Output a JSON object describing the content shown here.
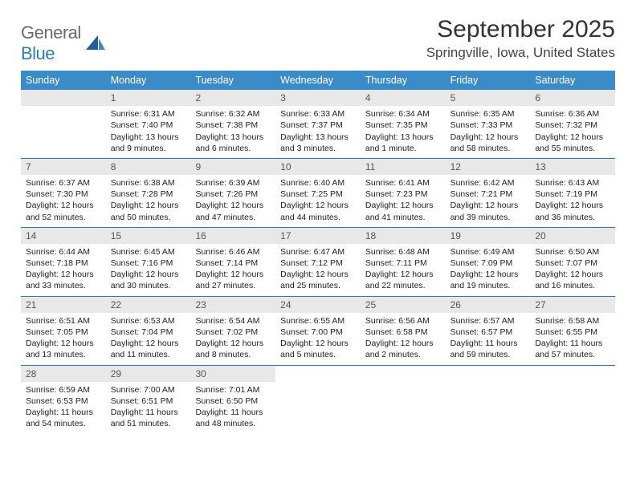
{
  "logo": {
    "word1": "General",
    "word2": "Blue"
  },
  "title": "September 2025",
  "location": "Springville, Iowa, United States",
  "colors": {
    "header_bg": "#3b8bc9",
    "header_text": "#ffffff",
    "daynum_bg": "#e8e8e8",
    "week_border": "#2c7bbf",
    "logo_gray": "#6a6a6a",
    "logo_blue": "#2c7bbf"
  },
  "weekdays": [
    "Sunday",
    "Monday",
    "Tuesday",
    "Wednesday",
    "Thursday",
    "Friday",
    "Saturday"
  ],
  "weeks": [
    [
      null,
      {
        "n": "1",
        "sr": "Sunrise: 6:31 AM",
        "ss": "Sunset: 7:40 PM",
        "dl": "Daylight: 13 hours and 9 minutes."
      },
      {
        "n": "2",
        "sr": "Sunrise: 6:32 AM",
        "ss": "Sunset: 7:38 PM",
        "dl": "Daylight: 13 hours and 6 minutes."
      },
      {
        "n": "3",
        "sr": "Sunrise: 6:33 AM",
        "ss": "Sunset: 7:37 PM",
        "dl": "Daylight: 13 hours and 3 minutes."
      },
      {
        "n": "4",
        "sr": "Sunrise: 6:34 AM",
        "ss": "Sunset: 7:35 PM",
        "dl": "Daylight: 13 hours and 1 minute."
      },
      {
        "n": "5",
        "sr": "Sunrise: 6:35 AM",
        "ss": "Sunset: 7:33 PM",
        "dl": "Daylight: 12 hours and 58 minutes."
      },
      {
        "n": "6",
        "sr": "Sunrise: 6:36 AM",
        "ss": "Sunset: 7:32 PM",
        "dl": "Daylight: 12 hours and 55 minutes."
      }
    ],
    [
      {
        "n": "7",
        "sr": "Sunrise: 6:37 AM",
        "ss": "Sunset: 7:30 PM",
        "dl": "Daylight: 12 hours and 52 minutes."
      },
      {
        "n": "8",
        "sr": "Sunrise: 6:38 AM",
        "ss": "Sunset: 7:28 PM",
        "dl": "Daylight: 12 hours and 50 minutes."
      },
      {
        "n": "9",
        "sr": "Sunrise: 6:39 AM",
        "ss": "Sunset: 7:26 PM",
        "dl": "Daylight: 12 hours and 47 minutes."
      },
      {
        "n": "10",
        "sr": "Sunrise: 6:40 AM",
        "ss": "Sunset: 7:25 PM",
        "dl": "Daylight: 12 hours and 44 minutes."
      },
      {
        "n": "11",
        "sr": "Sunrise: 6:41 AM",
        "ss": "Sunset: 7:23 PM",
        "dl": "Daylight: 12 hours and 41 minutes."
      },
      {
        "n": "12",
        "sr": "Sunrise: 6:42 AM",
        "ss": "Sunset: 7:21 PM",
        "dl": "Daylight: 12 hours and 39 minutes."
      },
      {
        "n": "13",
        "sr": "Sunrise: 6:43 AM",
        "ss": "Sunset: 7:19 PM",
        "dl": "Daylight: 12 hours and 36 minutes."
      }
    ],
    [
      {
        "n": "14",
        "sr": "Sunrise: 6:44 AM",
        "ss": "Sunset: 7:18 PM",
        "dl": "Daylight: 12 hours and 33 minutes."
      },
      {
        "n": "15",
        "sr": "Sunrise: 6:45 AM",
        "ss": "Sunset: 7:16 PM",
        "dl": "Daylight: 12 hours and 30 minutes."
      },
      {
        "n": "16",
        "sr": "Sunrise: 6:46 AM",
        "ss": "Sunset: 7:14 PM",
        "dl": "Daylight: 12 hours and 27 minutes."
      },
      {
        "n": "17",
        "sr": "Sunrise: 6:47 AM",
        "ss": "Sunset: 7:12 PM",
        "dl": "Daylight: 12 hours and 25 minutes."
      },
      {
        "n": "18",
        "sr": "Sunrise: 6:48 AM",
        "ss": "Sunset: 7:11 PM",
        "dl": "Daylight: 12 hours and 22 minutes."
      },
      {
        "n": "19",
        "sr": "Sunrise: 6:49 AM",
        "ss": "Sunset: 7:09 PM",
        "dl": "Daylight: 12 hours and 19 minutes."
      },
      {
        "n": "20",
        "sr": "Sunrise: 6:50 AM",
        "ss": "Sunset: 7:07 PM",
        "dl": "Daylight: 12 hours and 16 minutes."
      }
    ],
    [
      {
        "n": "21",
        "sr": "Sunrise: 6:51 AM",
        "ss": "Sunset: 7:05 PM",
        "dl": "Daylight: 12 hours and 13 minutes."
      },
      {
        "n": "22",
        "sr": "Sunrise: 6:53 AM",
        "ss": "Sunset: 7:04 PM",
        "dl": "Daylight: 12 hours and 11 minutes."
      },
      {
        "n": "23",
        "sr": "Sunrise: 6:54 AM",
        "ss": "Sunset: 7:02 PM",
        "dl": "Daylight: 12 hours and 8 minutes."
      },
      {
        "n": "24",
        "sr": "Sunrise: 6:55 AM",
        "ss": "Sunset: 7:00 PM",
        "dl": "Daylight: 12 hours and 5 minutes."
      },
      {
        "n": "25",
        "sr": "Sunrise: 6:56 AM",
        "ss": "Sunset: 6:58 PM",
        "dl": "Daylight: 12 hours and 2 minutes."
      },
      {
        "n": "26",
        "sr": "Sunrise: 6:57 AM",
        "ss": "Sunset: 6:57 PM",
        "dl": "Daylight: 11 hours and 59 minutes."
      },
      {
        "n": "27",
        "sr": "Sunrise: 6:58 AM",
        "ss": "Sunset: 6:55 PM",
        "dl": "Daylight: 11 hours and 57 minutes."
      }
    ],
    [
      {
        "n": "28",
        "sr": "Sunrise: 6:59 AM",
        "ss": "Sunset: 6:53 PM",
        "dl": "Daylight: 11 hours and 54 minutes."
      },
      {
        "n": "29",
        "sr": "Sunrise: 7:00 AM",
        "ss": "Sunset: 6:51 PM",
        "dl": "Daylight: 11 hours and 51 minutes."
      },
      {
        "n": "30",
        "sr": "Sunrise: 7:01 AM",
        "ss": "Sunset: 6:50 PM",
        "dl": "Daylight: 11 hours and 48 minutes."
      },
      null,
      null,
      null,
      null
    ]
  ]
}
